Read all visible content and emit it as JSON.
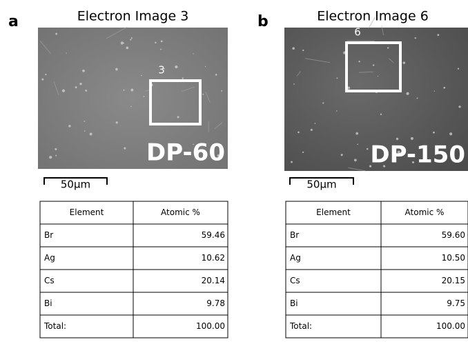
{
  "panels": [
    {
      "label": "a",
      "title": "Electron Image 3",
      "region_label": "3",
      "sample": "DP-60",
      "scale_bar": "50µm",
      "table": {
        "header": [
          "Element",
          "Atomic %"
        ],
        "rows": [
          [
            "Br",
            "59.46"
          ],
          [
            "Ag",
            "10.62"
          ],
          [
            "Cs",
            "20.14"
          ],
          [
            "Bi",
            "9.78"
          ],
          [
            "Total:",
            "100.00"
          ]
        ]
      }
    },
    {
      "label": "b",
      "title": "Electron Image 6",
      "region_label": "6",
      "sample": "DP-150",
      "scale_bar": "50µm",
      "table": {
        "header": [
          "Element",
          "Atomic %"
        ],
        "rows": [
          [
            "Br",
            "59.60"
          ],
          [
            "Ag",
            "10.50"
          ],
          [
            "Cs",
            "20.15"
          ],
          [
            "Bi",
            "9.75"
          ],
          [
            "Total:",
            "100.00"
          ]
        ]
      }
    }
  ]
}
